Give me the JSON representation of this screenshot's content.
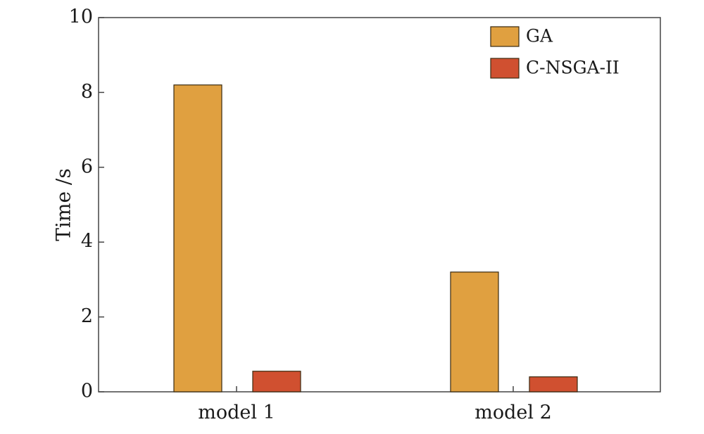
{
  "chart_data": {
    "type": "bar",
    "title": "",
    "xlabel": "",
    "ylabel": "Time /s",
    "categories": [
      "model 1",
      "model 2"
    ],
    "series": [
      {
        "name": "GA",
        "values": [
          8.2,
          3.2
        ],
        "color": "#E0A040"
      },
      {
        "name": "C-NSGA-II",
        "values": [
          0.55,
          0.4
        ],
        "color": "#D05030"
      }
    ],
    "ylim": [
      0,
      10
    ],
    "yticks": [
      "0",
      "2",
      "4",
      "6",
      "8",
      "10"
    ],
    "grid": false,
    "legend_position": "top-right"
  }
}
